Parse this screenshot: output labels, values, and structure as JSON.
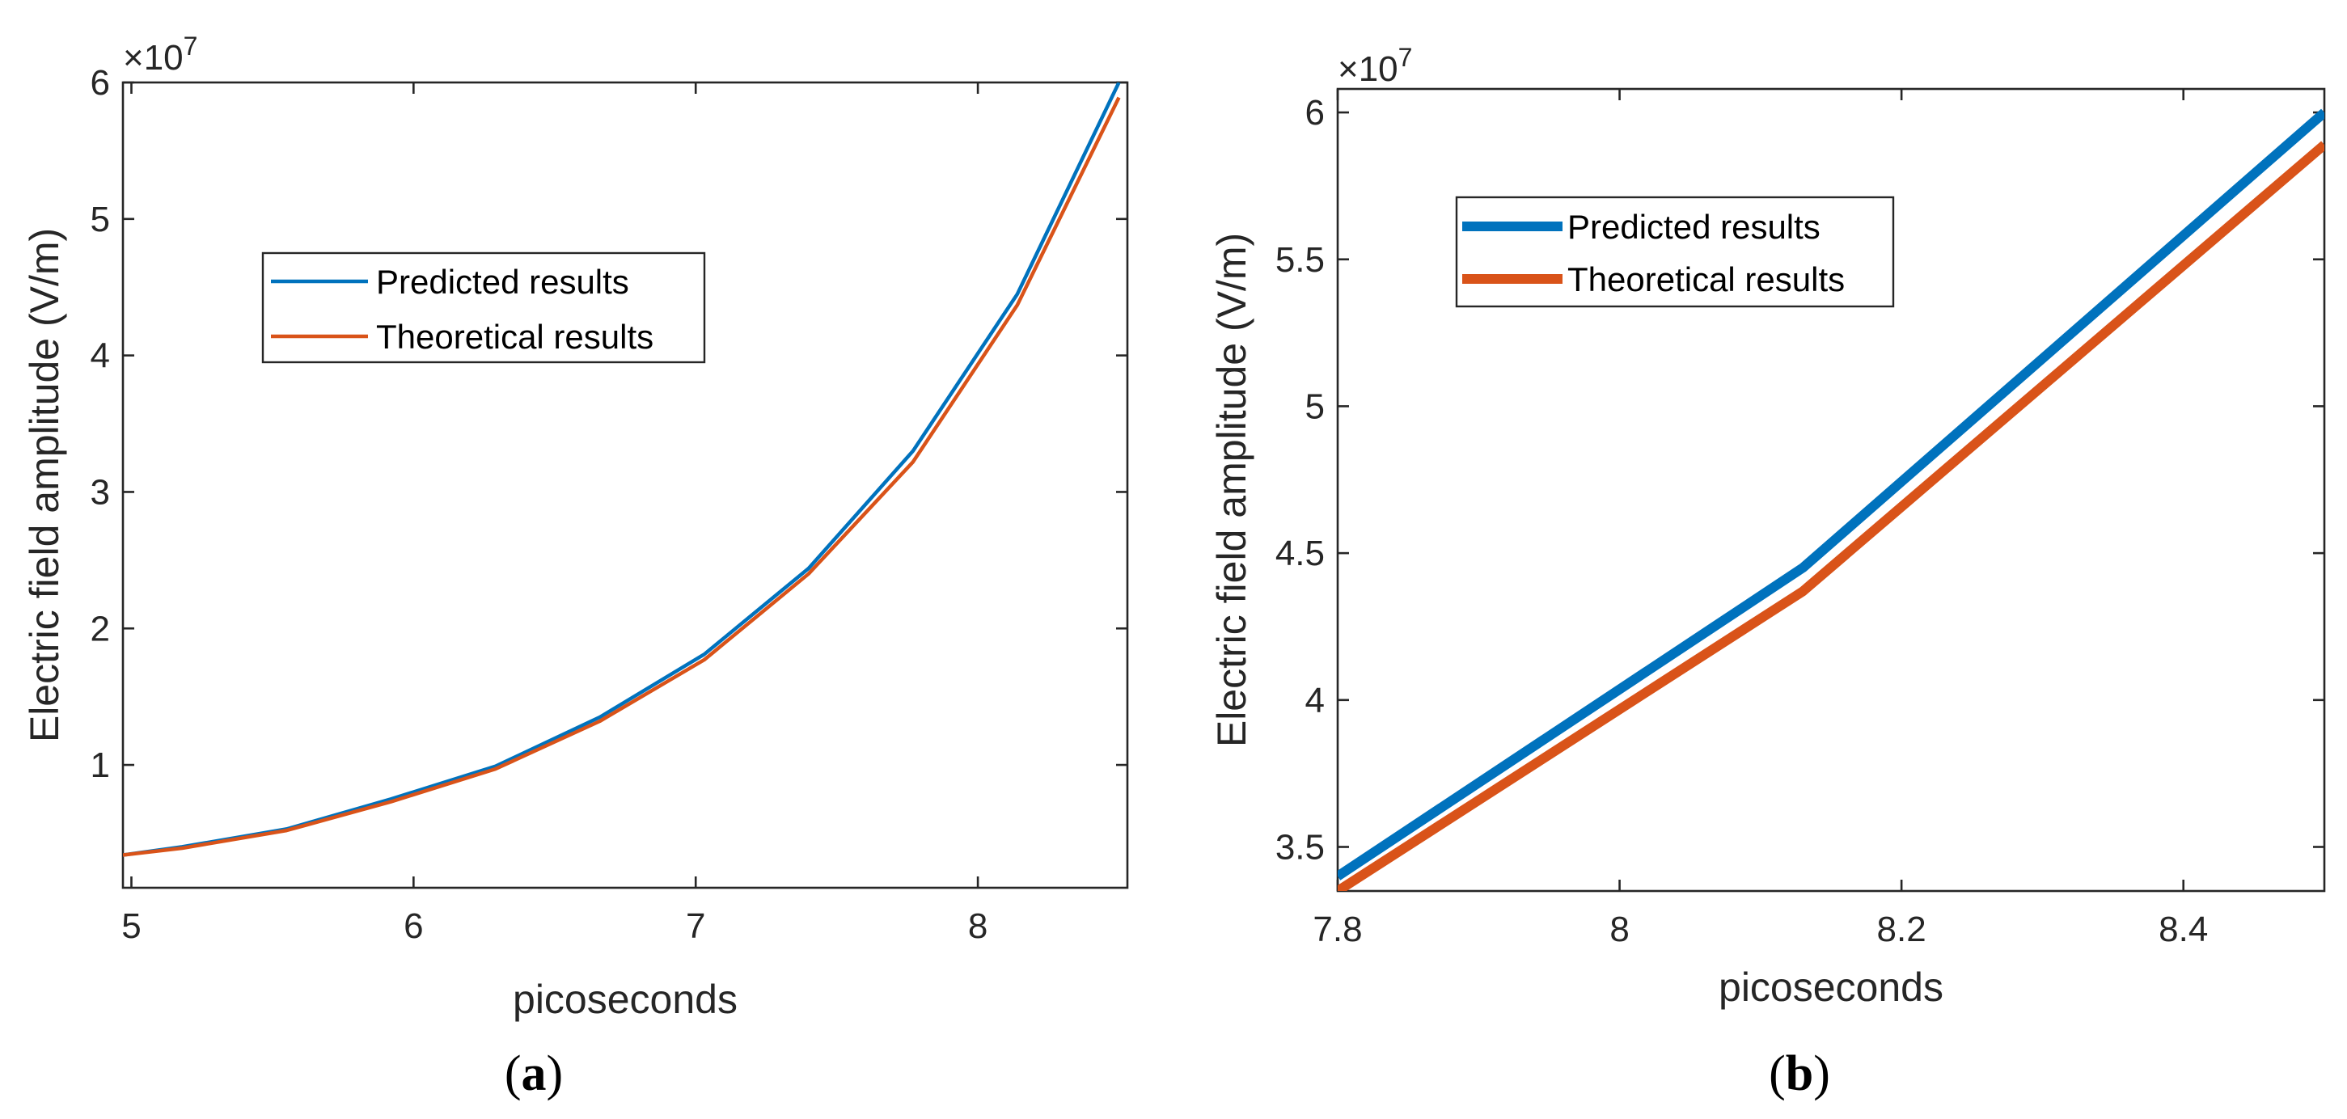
{
  "chart_data": [
    {
      "id": "a",
      "type": "line",
      "caption_letter": "a",
      "xlabel": "picoseconds",
      "ylabel": "Electric field amplitude (V/m)",
      "y_multiplier_text": "×10",
      "y_multiplier_exp": "7",
      "xlim": [
        4.97,
        8.53
      ],
      "ylim": [
        0.1,
        6.0
      ],
      "xticks": [
        5,
        6,
        7,
        8
      ],
      "yticks": [
        1,
        2,
        3,
        4,
        5,
        6
      ],
      "legend_position": "center-left",
      "series": [
        {
          "name": "Predicted results",
          "color": "#0072BD",
          "x": [
            4.97,
            5.18,
            5.55,
            5.92,
            6.29,
            6.66,
            7.03,
            7.4,
            7.77,
            8.14,
            8.5
          ],
          "y": [
            0.34,
            0.4,
            0.53,
            0.75,
            0.99,
            1.35,
            1.81,
            2.44,
            3.3,
            4.45,
            6.0
          ]
        },
        {
          "name": "Theoretical results",
          "color": "#D95319",
          "x": [
            4.97,
            5.18,
            5.55,
            5.92,
            6.29,
            6.66,
            7.03,
            7.4,
            7.77,
            8.14,
            8.5
          ],
          "y": [
            0.34,
            0.39,
            0.52,
            0.73,
            0.97,
            1.32,
            1.77,
            2.4,
            3.22,
            4.37,
            5.89
          ]
        }
      ]
    },
    {
      "id": "b",
      "type": "line",
      "caption_letter": "b",
      "xlabel": "picoseconds",
      "ylabel": "Electric field amplitude (V/m)",
      "y_multiplier_text": "×10",
      "y_multiplier_exp": "7",
      "xlim": [
        7.8,
        8.5
      ],
      "ylim": [
        3.35,
        6.08
      ],
      "xticks": [
        7.8,
        8.0,
        8.2,
        8.4
      ],
      "xtick_labels": [
        "7.8",
        "8",
        "8.2",
        "8.4"
      ],
      "yticks": [
        3.5,
        4.0,
        4.5,
        5.0,
        5.5,
        6.0
      ],
      "ytick_labels": [
        "3.5",
        "4",
        "4.5",
        "5",
        "5.5",
        "6"
      ],
      "legend_position": "top-left",
      "series": [
        {
          "name": "Predicted results",
          "color": "#0072BD",
          "x": [
            7.8,
            8.13,
            8.5
          ],
          "y": [
            3.4,
            4.45,
            6.0
          ]
        },
        {
          "name": "Theoretical results",
          "color": "#D95319",
          "x": [
            7.8,
            8.13,
            8.5
          ],
          "y": [
            3.35,
            4.37,
            5.89
          ]
        }
      ]
    }
  ]
}
